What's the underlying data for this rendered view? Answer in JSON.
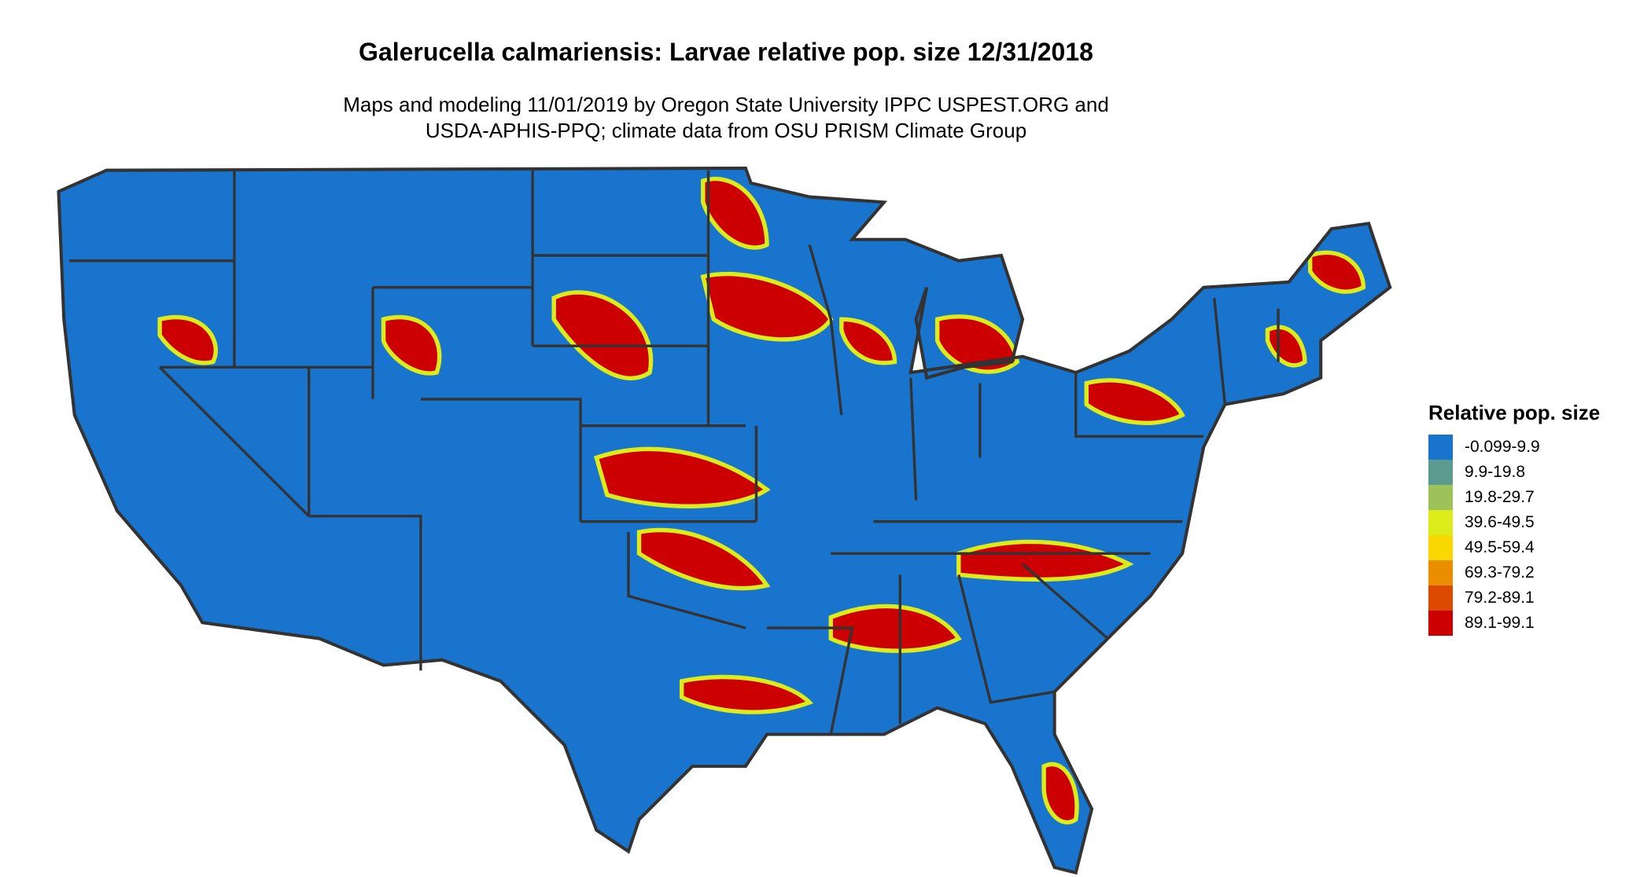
{
  "title": "Galerucella calmariensis: Larvae relative pop. size 12/31/2018",
  "subtitle_lines": [
    "Maps and modeling 11/01/2019 by Oregon State University IPPC USPEST.ORG and",
    "USDA-APHIS-PPQ; climate data from OSU PRISM Climate Group"
  ],
  "map": {
    "region": "Contiguous United States",
    "dominant_color": "#1874CD",
    "border_color": "#333333"
  },
  "legend": {
    "title": "Relative pop. size",
    "items": [
      {
        "label": "-0.099-9.9",
        "color": "#1874CD"
      },
      {
        "label": "9.9-19.8",
        "color": "#5A9A8F"
      },
      {
        "label": "19.8-29.7",
        "color": "#9DC259"
      },
      {
        "label": "39.6-49.5",
        "color": "#DCEB1A"
      },
      {
        "label": "49.5-59.4",
        "color": "#F8D800"
      },
      {
        "label": "69.3-79.2",
        "color": "#EA8E00"
      },
      {
        "label": "79.2-89.1",
        "color": "#DC4A00"
      },
      {
        "label": "89.1-99.1",
        "color": "#CC0000"
      }
    ]
  }
}
